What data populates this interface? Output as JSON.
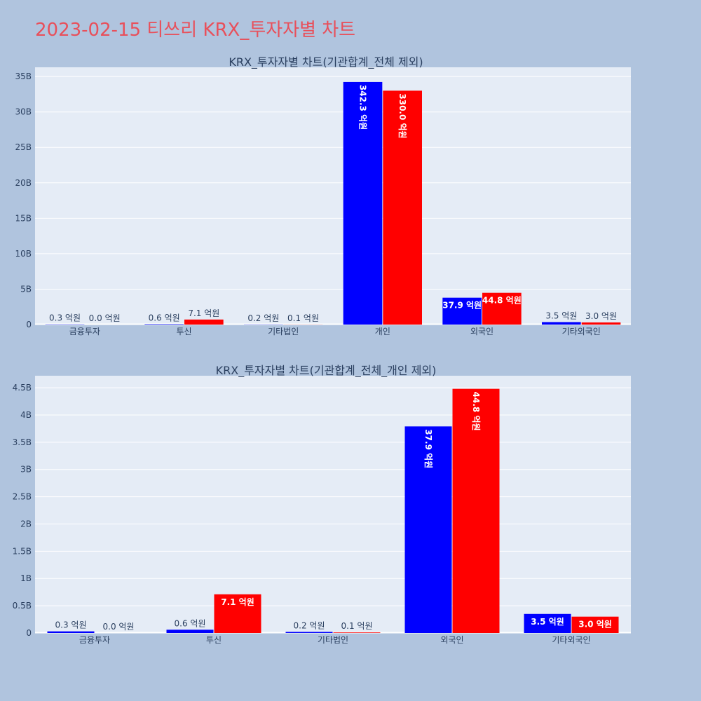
{
  "page_title": "2023-02-15 티쓰리 KRX_투자자별 차트",
  "colors": {
    "buy": "#0000ff",
    "sell": "#ff0000",
    "title": "#e8505b",
    "plot_bg": "#e5ecf6",
    "page_bg": "#b0c4de"
  },
  "chart_data": [
    {
      "type": "bar",
      "title": "KRX_투자자별 차트(기관합계_전체 제외)",
      "categories": [
        "금융투자",
        "투신",
        "기타법인",
        "개인",
        "외국인",
        "기타외국인"
      ],
      "series": [
        {
          "color": "#0000ff",
          "values": [
            30000000,
            60000000,
            20000000,
            34230000000,
            3790000000,
            350000000
          ],
          "labels": [
            "0.3 억원",
            "0.6 억원",
            "0.2 억원",
            "342.3 억원",
            "37.9 억원",
            "3.5 억원"
          ]
        },
        {
          "color": "#ff0000",
          "values": [
            0,
            710000000,
            10000000,
            33000000000,
            4480000000,
            300000000
          ],
          "labels": [
            "0.0 억원",
            "7.1 억원",
            "0.1 억원",
            "330.0 억원",
            "44.8 억원",
            "3.0 억원"
          ]
        }
      ],
      "yticks": [
        0,
        5000000000,
        10000000000,
        15000000000,
        20000000000,
        25000000000,
        30000000000,
        35000000000
      ],
      "ytick_labels": [
        "0",
        "5B",
        "10B",
        "15B",
        "20B",
        "25B",
        "30B",
        "35B"
      ],
      "ylim": [
        0,
        36300000000
      ],
      "grid": true
    },
    {
      "type": "bar",
      "title": "KRX_투자자별 차트(기관합계_전체_개인 제외)",
      "categories": [
        "금융투자",
        "투신",
        "기타법인",
        "외국인",
        "기타외국인"
      ],
      "series": [
        {
          "color": "#0000ff",
          "values": [
            30000000,
            60000000,
            20000000,
            3790000000,
            350000000
          ],
          "labels": [
            "0.3 억원",
            "0.6 억원",
            "0.2 억원",
            "37.9 억원",
            "3.5 억원"
          ]
        },
        {
          "color": "#ff0000",
          "values": [
            0,
            710000000,
            10000000,
            4480000000,
            300000000
          ],
          "labels": [
            "0.0 억원",
            "7.1 억원",
            "0.1 억원",
            "44.8 억원",
            "3.0 억원"
          ]
        }
      ],
      "yticks": [
        0,
        500000000,
        1000000000,
        1500000000,
        2000000000,
        2500000000,
        3000000000,
        3500000000,
        4000000000,
        4500000000
      ],
      "ytick_labels": [
        "0",
        "0.5B",
        "1B",
        "1.5B",
        "2B",
        "2.5B",
        "3B",
        "3.5B",
        "4B",
        "4.5B"
      ],
      "ylim": [
        0,
        4720000000
      ],
      "grid": true
    }
  ]
}
